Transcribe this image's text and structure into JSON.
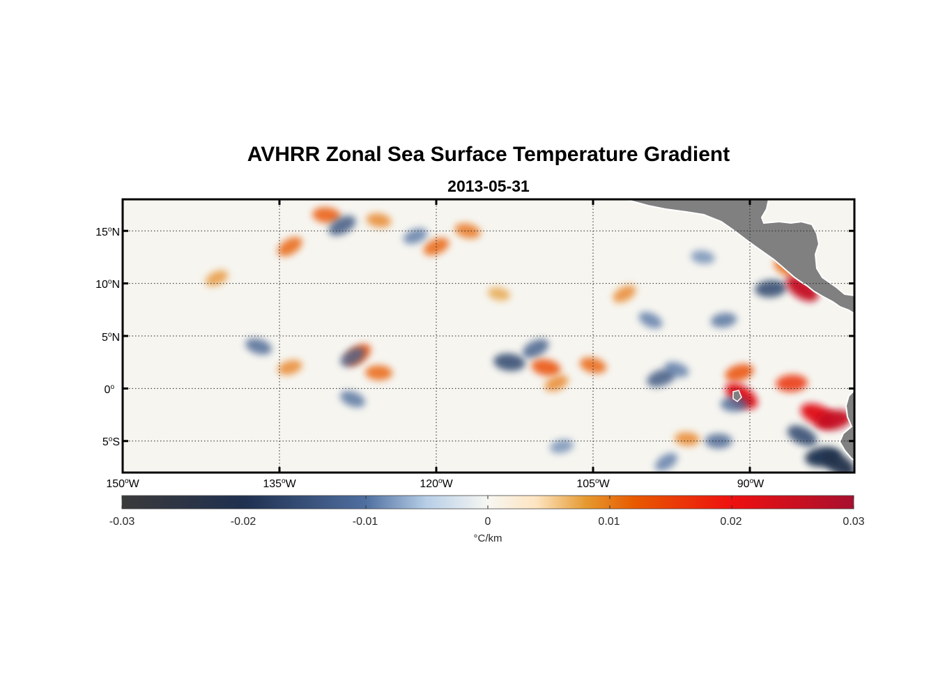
{
  "header": {
    "title": "AVHRR Zonal Sea Surface Temperature Gradient",
    "date": "2013-05-31"
  },
  "map": {
    "lat_labels": [
      {
        "deg": "15",
        "hemi": "N"
      },
      {
        "deg": "10",
        "hemi": "N"
      },
      {
        "deg": "5",
        "hemi": "N"
      },
      {
        "deg": "0",
        "hemi": ""
      },
      {
        "deg": "5",
        "hemi": "S"
      }
    ],
    "lon_labels": [
      {
        "deg": "150",
        "hemi": "W"
      },
      {
        "deg": "135",
        "hemi": "W"
      },
      {
        "deg": "120",
        "hemi": "W"
      },
      {
        "deg": "105",
        "hemi": "W"
      },
      {
        "deg": "90",
        "hemi": "W"
      }
    ],
    "extent": {
      "lon_min": -150,
      "lon_max": -80,
      "lat_min": -8,
      "lat_max": 18
    },
    "land_color": "#808080",
    "gradient_features": [
      {
        "lon": -127.5,
        "lat": 3.2,
        "value": 0.014
      },
      {
        "lon": -125.5,
        "lat": 1.5,
        "value": 0.012
      },
      {
        "lon": -128.0,
        "lat": 3.0,
        "value": -0.012
      },
      {
        "lon": -113.0,
        "lat": 2.5,
        "value": -0.016
      },
      {
        "lon": -110.5,
        "lat": 3.8,
        "value": -0.013
      },
      {
        "lon": -109.5,
        "lat": 2.0,
        "value": 0.014
      },
      {
        "lon": -108.5,
        "lat": 0.5,
        "value": 0.01
      },
      {
        "lon": -105.0,
        "lat": 2.2,
        "value": 0.012
      },
      {
        "lon": -98.5,
        "lat": 1.0,
        "value": -0.014
      },
      {
        "lon": -97.0,
        "lat": 1.8,
        "value": -0.01
      },
      {
        "lon": -91.0,
        "lat": 1.5,
        "value": 0.014
      },
      {
        "lon": -83.5,
        "lat": -2.5,
        "value": 0.022
      },
      {
        "lon": -82.0,
        "lat": -3.0,
        "value": 0.026
      },
      {
        "lon": -85.0,
        "lat": -4.5,
        "value": -0.016
      },
      {
        "lon": -83.0,
        "lat": -6.5,
        "value": -0.02
      },
      {
        "lon": -81.5,
        "lat": -7.2,
        "value": -0.022
      },
      {
        "lon": -86.0,
        "lat": 0.5,
        "value": 0.016
      },
      {
        "lon": -90.8,
        "lat": -0.7,
        "value": 0.022
      },
      {
        "lon": -91.5,
        "lat": -1.5,
        "value": -0.012
      },
      {
        "lon": -134.0,
        "lat": 13.5,
        "value": 0.012
      },
      {
        "lon": -130.5,
        "lat": 16.5,
        "value": 0.013
      },
      {
        "lon": -129.0,
        "lat": 15.5,
        "value": -0.014
      },
      {
        "lon": -125.5,
        "lat": 16.0,
        "value": 0.01
      },
      {
        "lon": -120.0,
        "lat": 13.5,
        "value": 0.012
      },
      {
        "lon": -117.0,
        "lat": 15.0,
        "value": 0.011
      },
      {
        "lon": -122.0,
        "lat": 14.5,
        "value": -0.01
      },
      {
        "lon": -137.0,
        "lat": 4.0,
        "value": -0.012
      },
      {
        "lon": -134.0,
        "lat": 2.0,
        "value": 0.01
      },
      {
        "lon": -128.0,
        "lat": -1.0,
        "value": -0.011
      },
      {
        "lon": -108.0,
        "lat": -5.5,
        "value": -0.009
      },
      {
        "lon": -99.5,
        "lat": 6.5,
        "value": -0.01
      },
      {
        "lon": -92.5,
        "lat": 6.5,
        "value": -0.011
      },
      {
        "lon": -86.5,
        "lat": 11.5,
        "value": 0.012
      },
      {
        "lon": -88.0,
        "lat": 9.5,
        "value": -0.016
      },
      {
        "lon": -85.0,
        "lat": 9.5,
        "value": 0.026
      },
      {
        "lon": -93.0,
        "lat": -5.0,
        "value": -0.012
      },
      {
        "lon": -98.0,
        "lat": -7.0,
        "value": -0.01
      },
      {
        "lon": -96.0,
        "lat": -4.8,
        "value": 0.01
      },
      {
        "lon": -102.0,
        "lat": 9.0,
        "value": 0.01
      },
      {
        "lon": -94.5,
        "lat": 12.5,
        "value": -0.009
      },
      {
        "lon": -141.0,
        "lat": 10.5,
        "value": 0.009
      },
      {
        "lon": -114.0,
        "lat": 9.0,
        "value": 0.008
      }
    ]
  },
  "colorbar": {
    "ticks": [
      "-0.03",
      "-0.02",
      "-0.01",
      "0",
      "0.01",
      "0.02",
      "0.03"
    ],
    "min": -0.03,
    "max": 0.03,
    "unit": "°C/km",
    "stops": [
      {
        "value": -0.03,
        "color": "#3a3a3a"
      },
      {
        "value": -0.02,
        "color": "#1f3050"
      },
      {
        "value": -0.01,
        "color": "#4f6fa0"
      },
      {
        "value": -0.005,
        "color": "#b8cfe8"
      },
      {
        "value": 0.0,
        "color": "#f7f7f2"
      },
      {
        "value": 0.004,
        "color": "#fde4c0"
      },
      {
        "value": 0.008,
        "color": "#e59a30"
      },
      {
        "value": 0.012,
        "color": "#e85a00"
      },
      {
        "value": 0.02,
        "color": "#ee1010"
      },
      {
        "value": 0.03,
        "color": "#a8102f"
      }
    ]
  }
}
